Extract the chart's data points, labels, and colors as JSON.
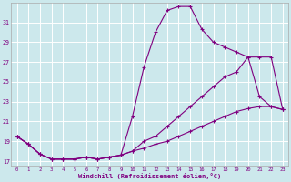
{
  "background_color": "#cce8ec",
  "line_color": "#800080",
  "grid_color": "#b8d8dc",
  "xlabel": "Windchill (Refroidissement éolien,°C)",
  "ylim": [
    16.5,
    33.0
  ],
  "yticks": [
    17,
    19,
    21,
    23,
    25,
    27,
    29,
    31
  ],
  "xlim": [
    -0.5,
    23.5
  ],
  "curve1_x": [
    0,
    1,
    2,
    3,
    4,
    5,
    6,
    7,
    8,
    9,
    10,
    11,
    12,
    13,
    14,
    15,
    16,
    17,
    18,
    19,
    20,
    21,
    22,
    23
  ],
  "curve1_y": [
    19.5,
    18.7,
    17.7,
    17.2,
    17.2,
    17.2,
    17.4,
    17.2,
    17.4,
    17.6,
    21.5,
    26.5,
    30.0,
    32.2,
    32.6,
    32.6,
    30.3,
    29.0,
    28.5,
    28.0,
    27.5,
    23.5,
    22.5,
    22.2
  ],
  "curve2_x": [
    0,
    1,
    2,
    3,
    4,
    5,
    6,
    7,
    8,
    9,
    10,
    11,
    12,
    13,
    14,
    15,
    16,
    17,
    18,
    19,
    20,
    21,
    22,
    23
  ],
  "curve2_y": [
    19.5,
    18.7,
    17.7,
    17.2,
    17.2,
    17.2,
    17.4,
    17.2,
    17.4,
    17.6,
    18.0,
    19.0,
    19.5,
    20.5,
    21.5,
    22.5,
    23.5,
    24.5,
    25.5,
    26.0,
    27.5,
    27.5,
    27.5,
    22.2
  ],
  "curve3_x": [
    0,
    1,
    2,
    3,
    4,
    5,
    6,
    7,
    8,
    9,
    10,
    11,
    12,
    13,
    14,
    15,
    16,
    17,
    18,
    19,
    20,
    21,
    22,
    23
  ],
  "curve3_y": [
    19.5,
    18.7,
    17.7,
    17.2,
    17.2,
    17.2,
    17.4,
    17.2,
    17.4,
    17.6,
    18.0,
    18.3,
    18.7,
    19.0,
    19.5,
    20.0,
    20.5,
    21.0,
    21.5,
    22.0,
    22.3,
    22.5,
    22.5,
    22.2
  ]
}
